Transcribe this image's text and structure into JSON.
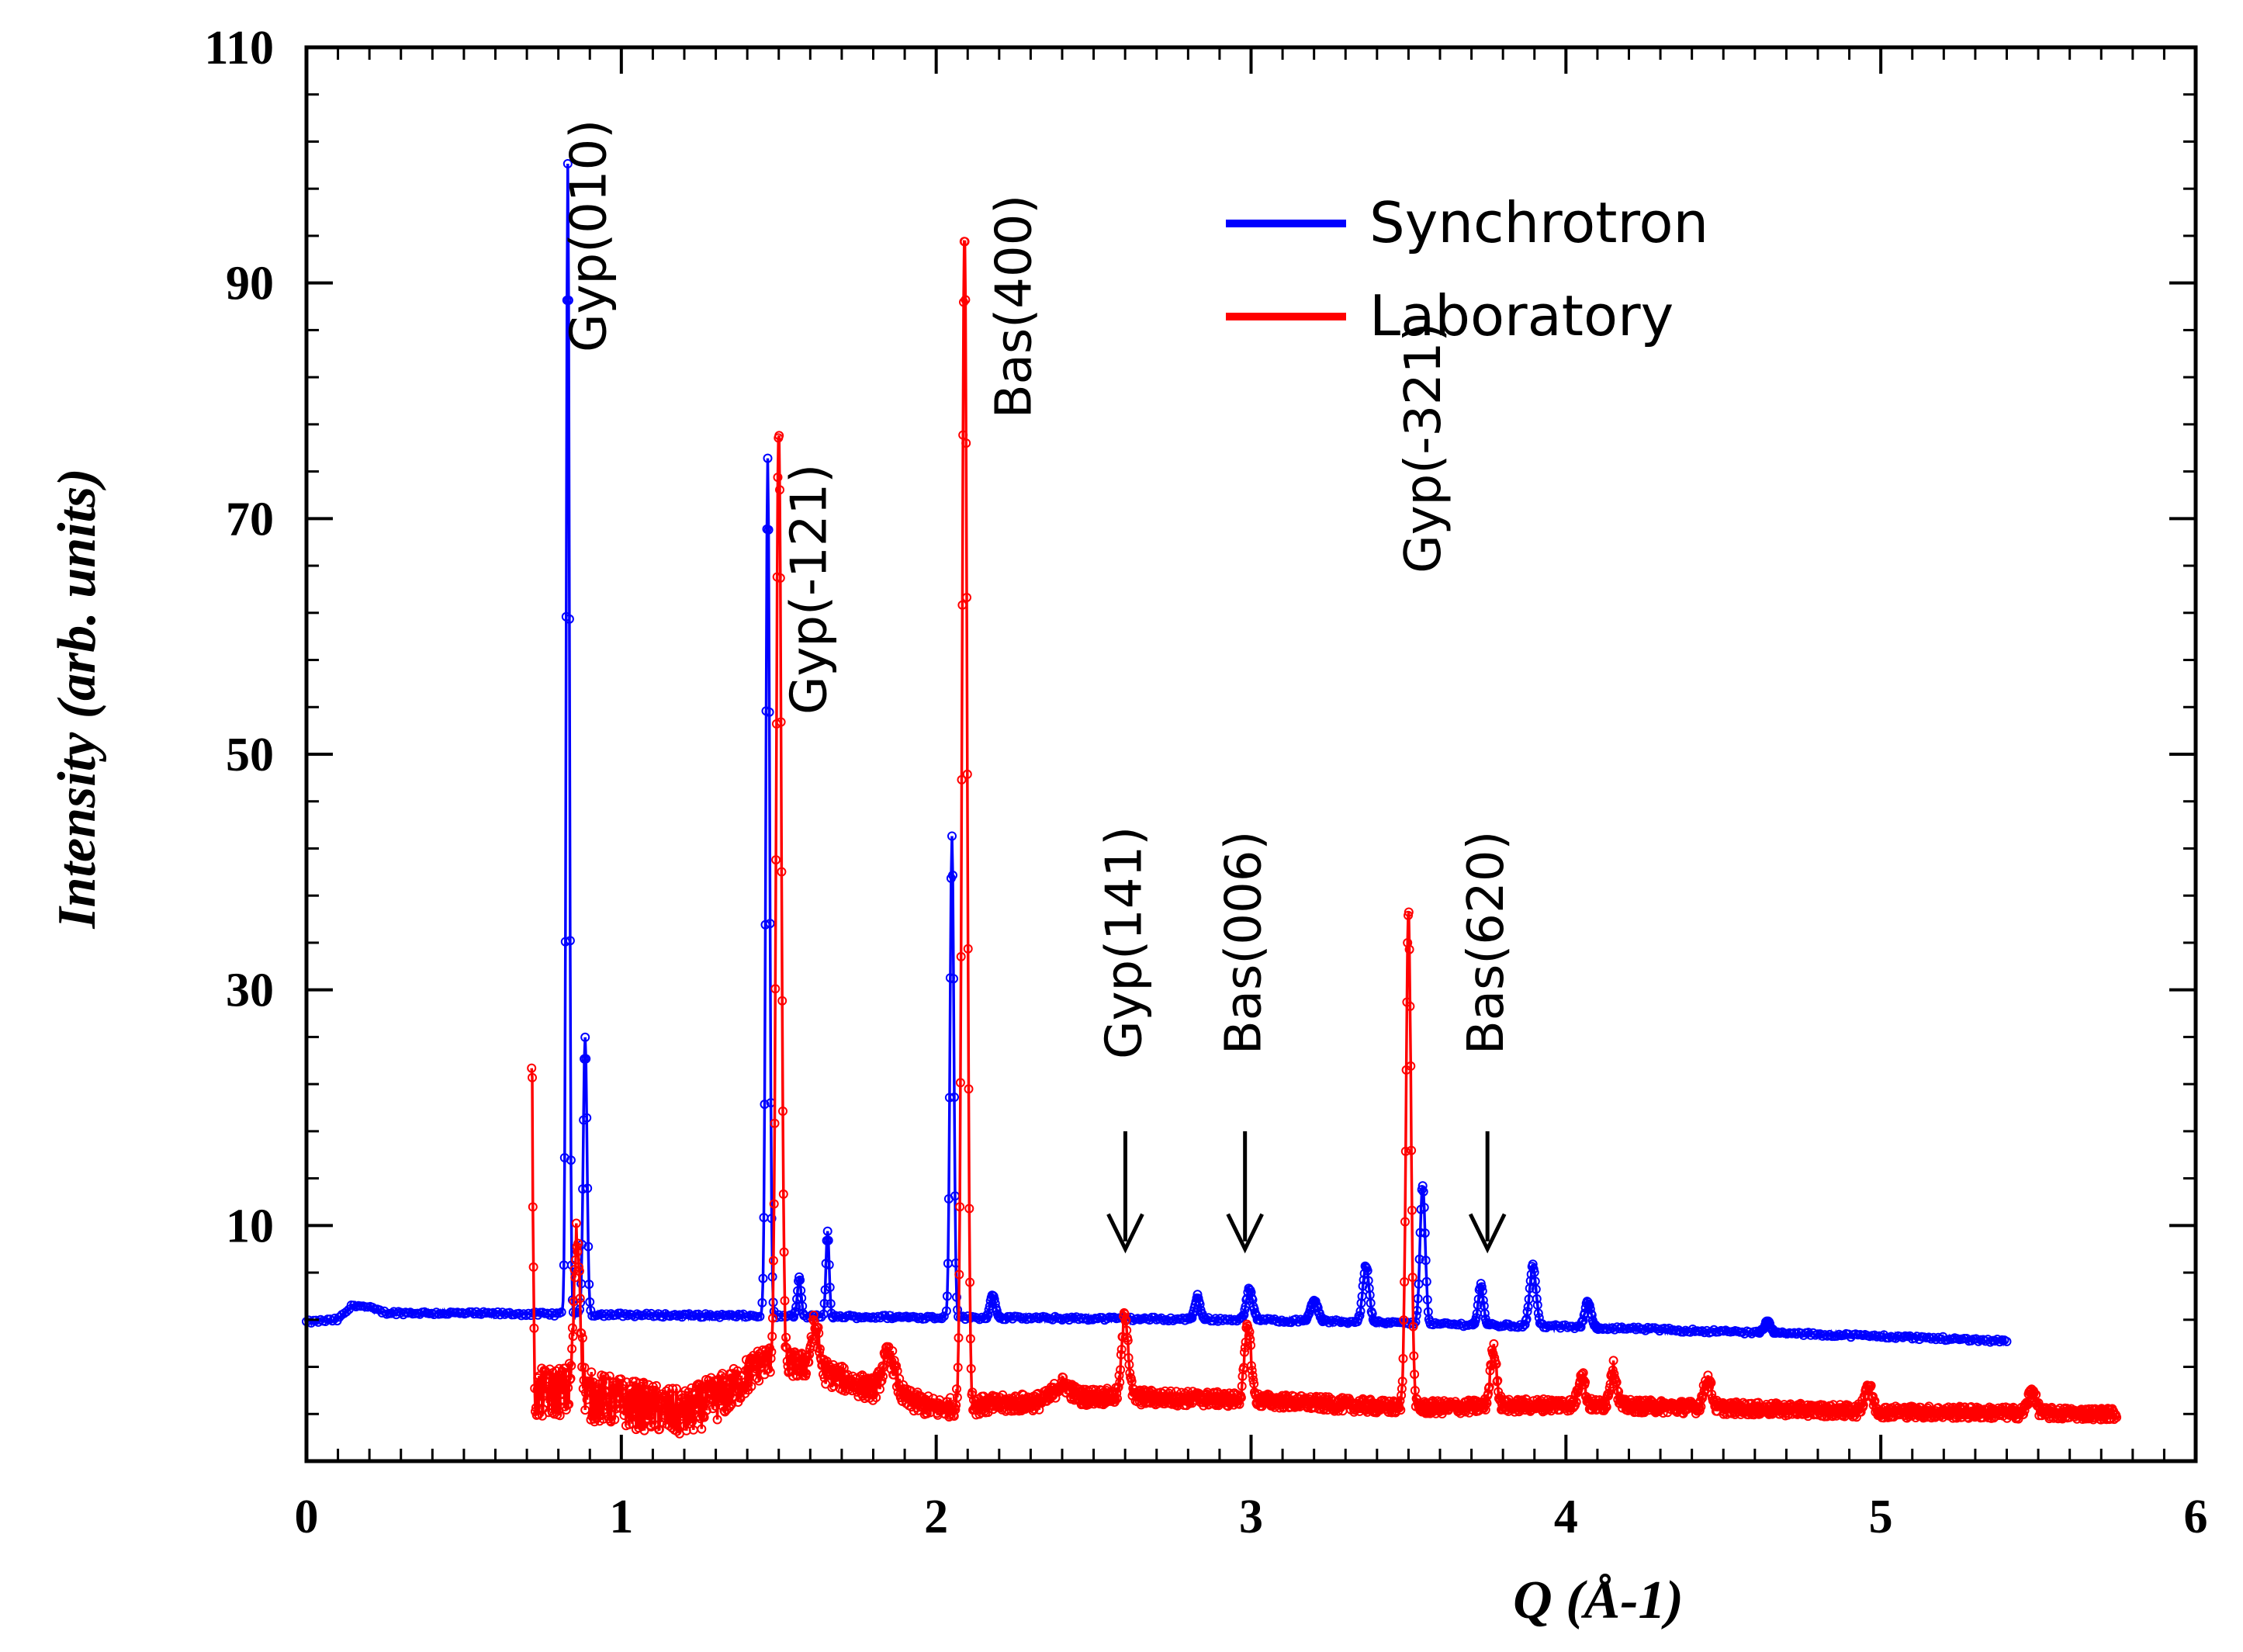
{
  "chart_data": {
    "type": "line",
    "title": "",
    "xlabel": "Q (Å-1)",
    "ylabel": "Intensity (arb. units)",
    "xlim": [
      0,
      6
    ],
    "ylim": [
      -10,
      110
    ],
    "x_ticks": [
      "0",
      "1",
      "2",
      "3",
      "4",
      "5",
      "6"
    ],
    "y_ticks": [
      "10",
      "30",
      "50",
      "70",
      "90",
      "110"
    ],
    "legend_position": "top-right",
    "series": [
      {
        "name": "Synchrotron",
        "color": "#0000ff",
        "baseline": [
          [
            0.0,
            1.8
          ],
          [
            0.1,
            2.0
          ],
          [
            0.15,
            3.3
          ],
          [
            0.2,
            3.0
          ],
          [
            0.25,
            2.6
          ],
          [
            1.5,
            2.3
          ],
          [
            3.0,
            2.0
          ],
          [
            4.0,
            1.4
          ],
          [
            5.0,
            0.6
          ],
          [
            5.4,
            0.2
          ]
        ],
        "peaks": [
          {
            "x": 0.83,
            "y": 100,
            "w": 0.005
          },
          {
            "x": 0.885,
            "y": 26,
            "w": 0.006
          },
          {
            "x": 1.465,
            "y": 75,
            "w": 0.006
          },
          {
            "x": 1.565,
            "y": 5.5,
            "w": 0.006
          },
          {
            "x": 1.655,
            "y": 9.5,
            "w": 0.005
          },
          {
            "x": 2.05,
            "y": 43,
            "w": 0.006
          },
          {
            "x": 2.18,
            "y": 4.2,
            "w": 0.008
          },
          {
            "x": 2.83,
            "y": 4.0,
            "w": 0.008
          },
          {
            "x": 2.995,
            "y": 4.6,
            "w": 0.01
          },
          {
            "x": 3.2,
            "y": 3.6,
            "w": 0.012
          },
          {
            "x": 3.365,
            "y": 6.6,
            "w": 0.01
          },
          {
            "x": 3.545,
            "y": 13.5,
            "w": 0.008
          },
          {
            "x": 3.73,
            "y": 5.0,
            "w": 0.008
          },
          {
            "x": 3.895,
            "y": 6.6,
            "w": 0.01
          },
          {
            "x": 4.07,
            "y": 3.5,
            "w": 0.01
          },
          {
            "x": 4.64,
            "y": 1.8,
            "w": 0.01
          }
        ]
      },
      {
        "name": "Laboratory",
        "color": "#ff0000",
        "baseline": [
          [
            0.715,
            -4.5
          ],
          [
            0.8,
            -4.0
          ],
          [
            1.0,
            -5.0
          ],
          [
            1.2,
            -6.0
          ],
          [
            1.35,
            -4.0
          ],
          [
            1.45,
            -1.5
          ],
          [
            1.6,
            -2.0
          ],
          [
            1.8,
            -4.0
          ],
          [
            2.0,
            -5.5
          ],
          [
            2.3,
            -5.0
          ],
          [
            2.5,
            -4.5
          ],
          [
            3.0,
            -4.8
          ],
          [
            3.5,
            -5.5
          ],
          [
            4.0,
            -5.2
          ],
          [
            5.0,
            -5.8
          ],
          [
            5.75,
            -6.0
          ]
        ],
        "noise": [
          [
            0.715,
            2.2
          ],
          [
            1.3,
            2.0
          ],
          [
            1.5,
            1.2
          ],
          [
            2.1,
            0.8
          ],
          [
            3.0,
            0.6
          ],
          [
            5.75,
            0.5
          ]
        ],
        "peaks": [
          {
            "x": 0.715,
            "y": 24.5,
            "w": 0.004
          },
          {
            "x": 0.86,
            "y": 9,
            "w": 0.01
          },
          {
            "x": 1.5,
            "y": 78,
            "w": 0.008
          },
          {
            "x": 1.615,
            "y": 1.5,
            "w": 0.012
          },
          {
            "x": 1.85,
            "y": -1.0,
            "w": 0.02
          },
          {
            "x": 2.09,
            "y": 95,
            "w": 0.008
          },
          {
            "x": 2.4,
            "y": -3.5,
            "w": 0.025
          },
          {
            "x": 2.6,
            "y": 2.5,
            "w": 0.01
          },
          {
            "x": 2.99,
            "y": 1.5,
            "w": 0.01
          },
          {
            "x": 3.5,
            "y": 36.5,
            "w": 0.008
          },
          {
            "x": 3.77,
            "y": -0.5,
            "w": 0.01
          },
          {
            "x": 4.05,
            "y": -2.5,
            "w": 0.01
          },
          {
            "x": 4.15,
            "y": -2.0,
            "w": 0.01
          },
          {
            "x": 4.45,
            "y": -3.0,
            "w": 0.012
          },
          {
            "x": 4.96,
            "y": -3.5,
            "w": 0.012
          },
          {
            "x": 5.48,
            "y": -4.0,
            "w": 0.012
          }
        ]
      }
    ],
    "annotations": [
      {
        "text": "Gyp(010)",
        "x": 0.95,
        "y": 94,
        "arrow": false
      },
      {
        "text": "Gyp(-121)",
        "x": 1.65,
        "y": 64,
        "arrow": false
      },
      {
        "text": "Bas(400)",
        "x": 2.3,
        "y": 88,
        "arrow": false
      },
      {
        "text": "Gyp(141)",
        "x": 2.65,
        "y": 34,
        "arrow": true,
        "arrow_top": 18,
        "arrow_bottom": 8
      },
      {
        "text": "Bas(006)",
        "x": 3.03,
        "y": 34,
        "arrow": true,
        "arrow_top": 18,
        "arrow_bottom": 8
      },
      {
        "text": "Gyp(-321)",
        "x": 3.6,
        "y": 76,
        "arrow": false
      },
      {
        "text": "Bas(620)",
        "x": 3.8,
        "y": 34,
        "arrow": true,
        "arrow_top": 18,
        "arrow_bottom": 8
      }
    ]
  }
}
